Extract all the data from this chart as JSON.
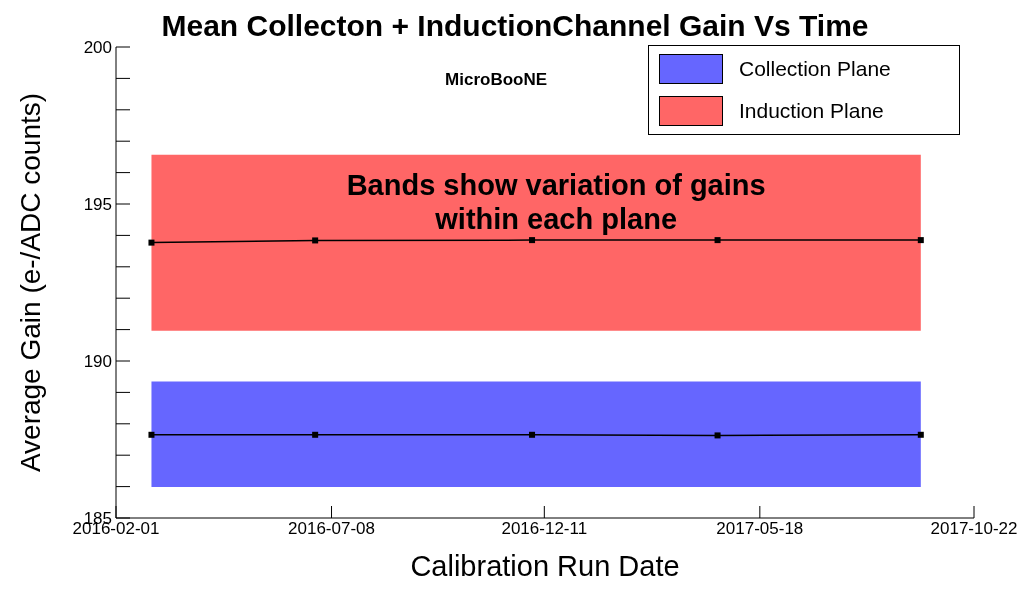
{
  "chart_data": {
    "type": "line",
    "title": "Mean Collecton + InductionChannel Gain Vs Time",
    "xlabel": "Calibration Run Date",
    "ylabel": "Average Gain (e-/ADC counts)",
    "annotations": [
      "MicroBooNE",
      "Bands show variation of gains\nwithin each plane"
    ],
    "x": [
      "2016-02-27",
      "2016-06-26",
      "2016-12-02",
      "2017-04-17",
      "2017-09-13"
    ],
    "series": [
      {
        "color": "#000000",
        "values": [
          187.65,
          187.65,
          187.65,
          187.63,
          187.65
        ]
      },
      {
        "color": "#000000",
        "values": [
          193.77,
          193.84,
          193.85,
          193.85,
          193.85
        ]
      }
    ],
    "bands": [
      {
        "axis": "y",
        "from": 185.99,
        "to": 189.35,
        "label": "Collection Plane",
        "color": "#6666ff"
      },
      {
        "axis": "y",
        "from": 190.96,
        "to": 196.57,
        "label": "Induction Plane",
        "color": "#ff6666"
      }
    ],
    "xlim": [
      "2016-02-01",
      "2017-10-22"
    ],
    "xticks": [
      "2016-02-01",
      "2016-07-08",
      "2016-12-11",
      "2017-05-18",
      "2017-10-22"
    ],
    "ylim": [
      185,
      200
    ],
    "yticks": [
      185,
      {
        "value": 186,
        "label": null
      },
      {
        "value": 187,
        "label": null
      },
      {
        "value": 188,
        "label": null
      },
      {
        "value": 189,
        "label": null
      },
      190,
      {
        "value": 191,
        "label": null
      },
      {
        "value": 192,
        "label": null
      },
      {
        "value": 193,
        "label": null
      },
      {
        "value": 194,
        "label": null
      },
      195,
      {
        "value": 196,
        "label": null
      },
      {
        "value": 197,
        "label": null
      },
      {
        "value": 198,
        "label": null
      },
      {
        "value": 199,
        "label": null
      },
      200
    ],
    "grid": false,
    "legend": "top right",
    "marker": "square",
    "line_style": "solid"
  }
}
